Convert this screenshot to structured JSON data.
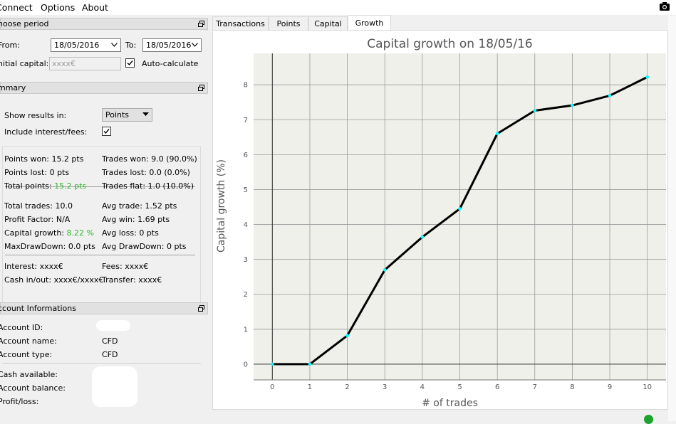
{
  "menu": {
    "items": [
      "Connect",
      "Options",
      "About"
    ]
  },
  "period": {
    "title": "hoose period",
    "from_label": "From:",
    "from_value": "18/05/2016",
    "to_label": "To:",
    "to_value": "18/05/2016",
    "capital_label": "nitial capital:",
    "capital_placeholder": "xxxx€",
    "auto_label": "Auto-calculate",
    "auto_checked": true
  },
  "summary": {
    "title": "mmary",
    "show_results_label": "Show results in:",
    "show_results_value": "Points",
    "include_label": "Include interest/fees:",
    "include_checked": true,
    "left_col": [
      {
        "text": "Points won: 15.2 pts"
      },
      {
        "text": "Points lost: 0 pts"
      },
      {
        "text": "Total points: ",
        "hl": "15.2 pts"
      },
      {
        "text": "Total trades: 10.0"
      },
      {
        "text": "Profit Factor: N/A"
      },
      {
        "text": "Capital growth: ",
        "hl": "8.22 %"
      },
      {
        "text": "MaxDrawDown: 0.0 pts"
      },
      {
        "text": "Interest: xxxx€"
      },
      {
        "text": "Cash in/out: xxxx€/xxxx€"
      }
    ],
    "right_col": [
      "Trades won: 9.0 (90.0%)",
      "Trades lost: 0.0 (0.0%)",
      "Trades flat: 1.0 (10.0%)",
      "Avg trade: 1.52 pts",
      "Avg win: 1.69 pts",
      "Avg loss: 0 pts",
      "Avg DrawDown: 0 pts",
      "Fees: xxxx€",
      "Transfer: xxxx€"
    ]
  },
  "account": {
    "title": "ccount Informations",
    "rows": [
      {
        "label": "Account ID:",
        "value": ""
      },
      {
        "label": "Account name:",
        "value": "CFD"
      },
      {
        "label": "Account type:",
        "value": "CFD"
      },
      {
        "label": "Cash available:",
        "value": ""
      },
      {
        "label": "Account balance:",
        "value": ""
      },
      {
        "label": "Profit/loss:",
        "value": ""
      }
    ]
  },
  "tabs": [
    "Transactions",
    "Points",
    "Capital",
    "Growth"
  ],
  "active_tab": "Growth",
  "colors": {
    "line": "#000000",
    "marker": "#00ffff",
    "highlight": "#2eb82e",
    "title": "#555555"
  },
  "chart_data": {
    "type": "line",
    "title": "Capital growth on 18/05/16",
    "xlabel": "# of trades",
    "ylabel": "Capital growth (%)",
    "x": [
      0,
      1,
      2,
      3,
      4,
      5,
      6,
      7,
      8,
      9,
      10
    ],
    "y": [
      0,
      0,
      0.82,
      2.7,
      3.64,
      4.45,
      6.6,
      7.26,
      7.41,
      7.69,
      8.22
    ],
    "xlim": [
      -0.5,
      10.5
    ],
    "ylim": [
      -0.45,
      8.9
    ],
    "xticks": [
      0,
      1,
      2,
      3,
      4,
      5,
      6,
      7,
      8,
      9,
      10
    ],
    "yticks": [
      0,
      1,
      2,
      3,
      4,
      5,
      6,
      7,
      8
    ],
    "grid": true
  }
}
